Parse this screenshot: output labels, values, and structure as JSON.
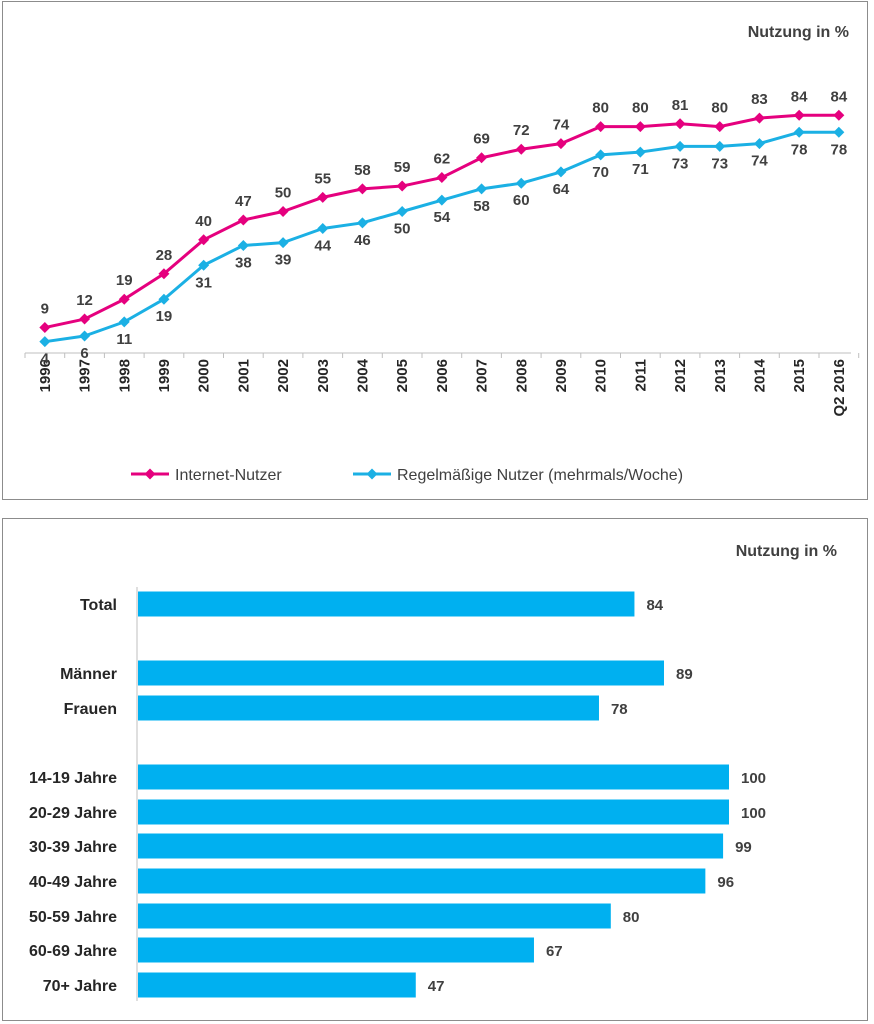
{
  "chart_data": [
    {
      "type": "line",
      "title": "Nutzung in %",
      "categories": [
        "1996",
        "1997",
        "1998",
        "1999",
        "2000",
        "2001",
        "2002",
        "2003",
        "2004",
        "2005",
        "2006",
        "2007",
        "2008",
        "2009",
        "2010",
        "2011",
        "2012",
        "2013",
        "2014",
        "2015",
        "Q2 2016"
      ],
      "series": [
        {
          "name": "Internet-Nutzer",
          "color": "#e5007e",
          "values": [
            9,
            12,
            19,
            28,
            40,
            47,
            50,
            55,
            58,
            59,
            62,
            69,
            72,
            74,
            80,
            80,
            81,
            80,
            83,
            84,
            84
          ]
        },
        {
          "name": "Regelmäßige Nutzer (mehrmals/Woche)",
          "color": "#1bb0e4",
          "values": [
            4,
            6,
            11,
            19,
            31,
            38,
            39,
            44,
            46,
            50,
            54,
            58,
            60,
            64,
            70,
            71,
            73,
            73,
            74,
            78,
            78
          ]
        }
      ],
      "ylim": [
        0,
        100
      ],
      "legend": "bottom"
    },
    {
      "type": "bar",
      "orientation": "horizontal",
      "title": "Nutzung in %",
      "categories": [
        "Total",
        "Männer",
        "Frauen",
        "14-19 Jahre",
        "20-29 Jahre",
        "30-39 Jahre",
        "40-49 Jahre",
        "50-59 Jahre",
        "60-69 Jahre",
        "70+ Jahre"
      ],
      "values": [
        84,
        89,
        78,
        100,
        100,
        99,
        96,
        80,
        67,
        47
      ],
      "groups": [
        1,
        2,
        7
      ],
      "color": "#00b0f0",
      "xlim": [
        0,
        100
      ]
    }
  ]
}
